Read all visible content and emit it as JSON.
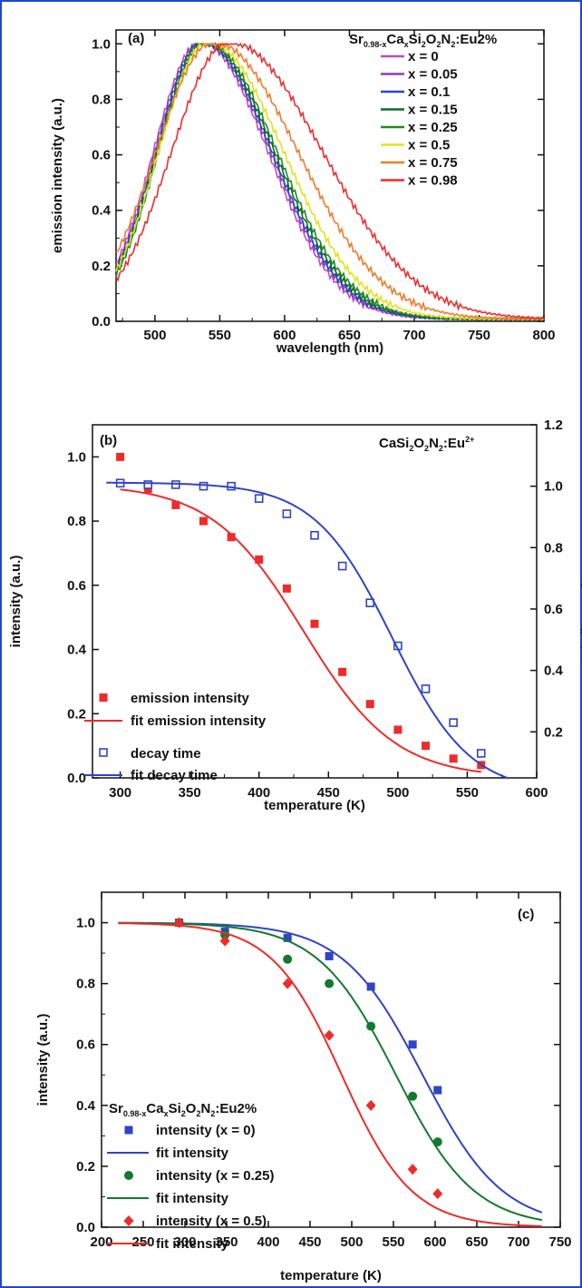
{
  "colors": {
    "frame": "#1f49c9",
    "purple": "#8a3fbf",
    "magenta": "#c04bc0",
    "blue": "#2f44c8",
    "dkgreen": "#0d6b2a",
    "green": "#1f8a1f",
    "yellow": "#e2e21a",
    "orange": "#f07a2a",
    "red": "#ee2b2b",
    "series_blue": "#2f44c8",
    "series_red": "#ee2b2b",
    "series_green": "#127a2e"
  },
  "panels": {
    "a": {
      "label": "(a)",
      "ylabel": "emission intensity (a.u.)",
      "xlabel": "wavelength (nm)",
      "legend_title": [
        "Sr",
        "0.98-x",
        "Ca",
        "x",
        "Si",
        "2",
        "O",
        "2",
        "N",
        "2",
        ":Eu2%"
      ],
      "xticks": [
        "500",
        "550",
        "600",
        "650",
        "700",
        "750",
        "800"
      ],
      "yticks": [
        "0.0",
        "0.2",
        "0.4",
        "0.6",
        "0.8",
        "1.0"
      ]
    },
    "b": {
      "label": "(b)",
      "ylabel": "intensity (a.u.)",
      "ylabel_right": "decay time (µs)",
      "xlabel": "temperature (K)",
      "compound": [
        "CaSi",
        "2",
        "O",
        "2",
        "N",
        "2",
        ":Eu",
        "2+"
      ],
      "xticks": [
        "300",
        "350",
        "400",
        "450",
        "500",
        "550",
        "600"
      ],
      "yticks": [
        "0.0",
        "0.2",
        "0.4",
        "0.6",
        "0.8",
        "1.0"
      ],
      "yticks_right": [
        "0.2",
        "0.4",
        "0.6",
        "0.8",
        "1.0",
        "1.2"
      ],
      "legend": [
        "emission intensity",
        "fit emission intensity",
        "decay time",
        "fit decay time"
      ]
    },
    "c": {
      "label": "(c)",
      "ylabel": "intensity (a.u.)",
      "xlabel": "temperature (K)",
      "legend_title": [
        "Sr",
        "0.98-x",
        "Ca",
        "x",
        "Si",
        "2",
        "O",
        "2",
        "N",
        "2",
        ":Eu2%"
      ],
      "xticks": [
        "200",
        "250",
        "300",
        "350",
        "400",
        "450",
        "500",
        "550",
        "600",
        "650",
        "700",
        "750"
      ],
      "yticks": [
        "0.0",
        "0.2",
        "0.4",
        "0.6",
        "0.8",
        "1.0"
      ],
      "legend": [
        "intensity (x = 0)",
        "fit intensity",
        "intensity (x = 0.25)",
        "fit intensity",
        "intensity (x = 0.5)",
        "fit intensity"
      ]
    }
  },
  "chart_data": [
    {
      "type": "line",
      "xlabel": "wavelength (nm)",
      "ylabel": "emission intensity (a.u.)",
      "xlim": [
        470,
        800
      ],
      "ylim": [
        0,
        1.05
      ],
      "series": [
        {
          "name": "x = 0",
          "color": "#c04bc0",
          "peak": 535,
          "wl": 36,
          "wr": 52
        },
        {
          "name": "x = 0.05",
          "color": "#8a3fbf",
          "peak": 536,
          "wl": 36,
          "wr": 53
        },
        {
          "name": "x = 0.1",
          "color": "#2f44c8",
          "peak": 537,
          "wl": 36,
          "wr": 53
        },
        {
          "name": "x = 0.15",
          "color": "#0d6b2a",
          "peak": 538,
          "wl": 36,
          "wr": 54
        },
        {
          "name": "x = 0.25",
          "color": "#1f8a1f",
          "peak": 539,
          "wl": 36,
          "wr": 55
        },
        {
          "name": "x = 0.5",
          "color": "#e2e21a",
          "peak": 541,
          "wl": 38,
          "wr": 58
        },
        {
          "name": "x = 0.75",
          "color": "#f07a2a",
          "peak": 545,
          "wl": 44,
          "wr": 65
        },
        {
          "name": "x = 0.98",
          "color": "#ee2b2b",
          "peak": 557,
          "wl": 44,
          "wr": 72
        }
      ]
    },
    {
      "type": "scatter",
      "xlabel": "temperature (K)",
      "ylabel": "intensity (a.u.)",
      "y2label": "decay time (µs)",
      "xlim": [
        280,
        600
      ],
      "ylim": [
        0,
        1.1
      ],
      "y2lim": [
        0.05,
        1.2
      ],
      "series": [
        {
          "name": "emission intensity",
          "axis": "left",
          "marker": "square-filled",
          "color": "#ee2b2b",
          "x": [
            300,
            320,
            340,
            360,
            380,
            400,
            420,
            440,
            460,
            480,
            500,
            520,
            540,
            560
          ],
          "y": [
            1.0,
            0.9,
            0.85,
            0.8,
            0.75,
            0.68,
            0.59,
            0.48,
            0.33,
            0.23,
            0.15,
            0.1,
            0.06,
            0.04
          ]
        },
        {
          "name": "fit emission intensity",
          "axis": "left",
          "line": true,
          "color": "#ee2b2b",
          "fit": {
            "top": 0.915,
            "t0": 432,
            "w": 33
          },
          "xrange": [
            300,
            560
          ]
        },
        {
          "name": "decay time",
          "axis": "right",
          "marker": "square-open",
          "color": "#2f44c8",
          "x": [
            300,
            320,
            340,
            360,
            380,
            400,
            420,
            440,
            460,
            480,
            500,
            520,
            540,
            560
          ],
          "y": [
            1.01,
            1.005,
            1.005,
            1.0,
            1.0,
            0.96,
            0.91,
            0.84,
            0.74,
            0.62,
            0.48,
            0.34,
            0.23,
            0.13
          ]
        },
        {
          "name": "fit decay time",
          "axis": "right",
          "line": true,
          "color": "#2f44c8",
          "fit": {
            "top": 1.012,
            "t0": 496,
            "w": 28
          },
          "xrange": [
            290,
            580
          ]
        }
      ]
    },
    {
      "type": "scatter",
      "xlabel": "temperature (K)",
      "ylabel": "intensity (a.u.)",
      "xlim": [
        200,
        750
      ],
      "ylim": [
        0,
        1.1
      ],
      "series": [
        {
          "name": "intensity (x = 0)",
          "marker": "square",
          "color": "#2f44c8",
          "x": [
            293,
            348,
            423,
            473,
            523,
            573,
            603
          ],
          "y": [
            1.0,
            0.97,
            0.95,
            0.89,
            0.79,
            0.6,
            0.45
          ]
        },
        {
          "name": "fit intensity",
          "line": true,
          "color": "#2f44c8",
          "fit": {
            "t0": 585,
            "w": 48
          },
          "xrange": [
            220,
            728
          ]
        },
        {
          "name": "intensity (x = 0.25)",
          "marker": "circle",
          "color": "#127a2e",
          "x": [
            293,
            348,
            423,
            473,
            523,
            573,
            603
          ],
          "y": [
            1.0,
            0.96,
            0.88,
            0.8,
            0.66,
            0.43,
            0.28
          ]
        },
        {
          "name": "fit intensity",
          "line": true,
          "color": "#127a2e",
          "fit": {
            "t0": 553,
            "w": 47
          },
          "xrange": [
            220,
            728
          ]
        },
        {
          "name": "intensity (x = 0.5)",
          "marker": "diamond",
          "color": "#ee2b2b",
          "x": [
            293,
            348,
            423,
            473,
            523,
            573,
            603
          ],
          "y": [
            1.0,
            0.94,
            0.8,
            0.63,
            0.4,
            0.19,
            0.11
          ]
        },
        {
          "name": "fit intensity",
          "line": true,
          "color": "#ee2b2b",
          "fit": {
            "t0": 488,
            "w": 42
          },
          "xrange": [
            220,
            728
          ]
        }
      ]
    }
  ]
}
